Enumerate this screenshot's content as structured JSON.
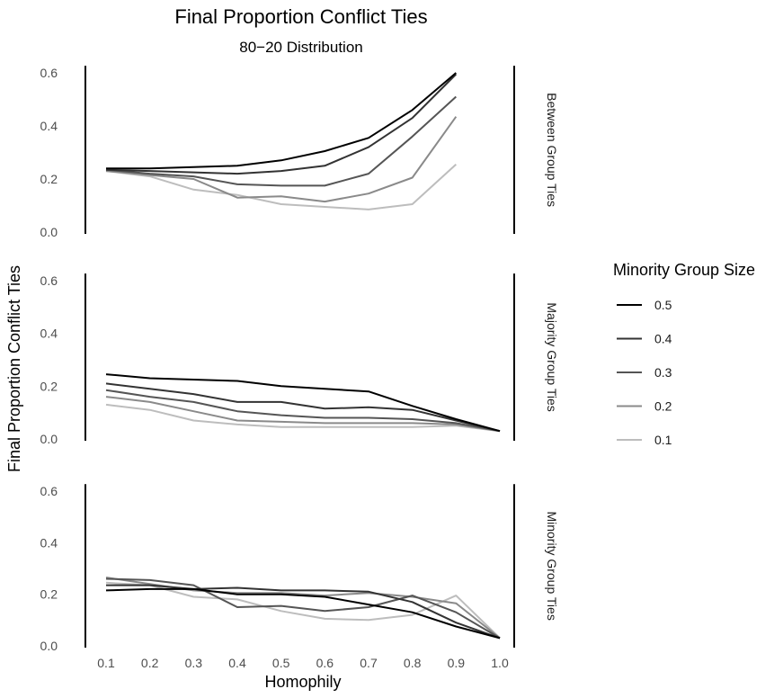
{
  "chart_data": {
    "type": "line",
    "title": "Final Proportion Conflict Ties",
    "subtitle": "80−20 Distribution",
    "xlabel": "Homophily",
    "ylabel": "Final Proportion Conflict Ties",
    "x": [
      0.1,
      0.2,
      0.3,
      0.4,
      0.5,
      0.6,
      0.7,
      0.8,
      0.9,
      1.0
    ],
    "x_tick_labels": [
      "0.1",
      "0.2",
      "0.3",
      "0.4",
      "0.5",
      "0.6",
      "0.7",
      "0.8",
      "0.9",
      "1.0"
    ],
    "ylim": [
      0,
      0.62
    ],
    "y_ticks": [
      0,
      0.2,
      0.4,
      0.6
    ],
    "y_tick_labels": [
      "0.0",
      "0.2",
      "0.4",
      "0.6"
    ],
    "legend": {
      "title": "Minority Group Size",
      "position": "right",
      "entries": [
        {
          "label": "0.5",
          "color": "#000000"
        },
        {
          "label": "0.4",
          "color": "#333333"
        },
        {
          "label": "0.3",
          "color": "#555555"
        },
        {
          "label": "0.2",
          "color": "#8a8a8a"
        },
        {
          "label": "0.1",
          "color": "#bdbdbd"
        }
      ]
    },
    "panels": [
      {
        "strip_label": "Between Group Ties",
        "series": [
          {
            "name": "0.5",
            "color": "#000000",
            "values": [
              0.24,
              0.24,
              0.245,
              0.25,
              0.27,
              0.305,
              0.355,
              0.46,
              0.6,
              null
            ]
          },
          {
            "name": "0.4",
            "color": "#333333",
            "values": [
              0.235,
              0.23,
              0.225,
              0.22,
              0.23,
              0.25,
              0.32,
              0.43,
              0.595,
              null
            ]
          },
          {
            "name": "0.3",
            "color": "#555555",
            "values": [
              0.235,
              0.22,
              0.21,
              0.18,
              0.175,
              0.175,
              0.22,
              0.36,
              0.51,
              null
            ]
          },
          {
            "name": "0.2",
            "color": "#8a8a8a",
            "values": [
              0.23,
              0.215,
              0.2,
              0.13,
              0.135,
              0.115,
              0.145,
              0.205,
              0.435,
              null
            ]
          },
          {
            "name": "0.1",
            "color": "#bdbdbd",
            "values": [
              0.23,
              0.21,
              0.16,
              0.14,
              0.105,
              0.095,
              0.085,
              0.105,
              0.255,
              null
            ]
          }
        ]
      },
      {
        "strip_label": "Majority Group Ties",
        "series": [
          {
            "name": "0.5",
            "color": "#000000",
            "values": [
              0.245,
              0.23,
              0.225,
              0.22,
              0.2,
              0.19,
              0.18,
              0.125,
              0.075,
              0.03
            ]
          },
          {
            "name": "0.4",
            "color": "#333333",
            "values": [
              0.21,
              0.19,
              0.17,
              0.14,
              0.14,
              0.115,
              0.12,
              0.11,
              0.07,
              0.03
            ]
          },
          {
            "name": "0.3",
            "color": "#555555",
            "values": [
              0.185,
              0.16,
              0.14,
              0.105,
              0.09,
              0.08,
              0.08,
              0.075,
              0.06,
              0.03
            ]
          },
          {
            "name": "0.2",
            "color": "#8a8a8a",
            "values": [
              0.16,
              0.14,
              0.105,
              0.07,
              0.065,
              0.06,
              0.06,
              0.06,
              0.055,
              0.03
            ]
          },
          {
            "name": "0.1",
            "color": "#bdbdbd",
            "values": [
              0.13,
              0.11,
              0.07,
              0.055,
              0.045,
              0.045,
              0.045,
              0.045,
              0.05,
              0.03
            ]
          }
        ]
      },
      {
        "strip_label": "Minority Group Ties",
        "series": [
          {
            "name": "0.5",
            "color": "#000000",
            "values": [
              0.215,
              0.22,
              0.22,
              0.2,
              0.2,
              0.19,
              0.16,
              0.13,
              0.075,
              0.03
            ]
          },
          {
            "name": "0.4",
            "color": "#333333",
            "values": [
              0.235,
              0.235,
              0.22,
              0.225,
              0.215,
              0.215,
              0.21,
              0.17,
              0.09,
              0.03
            ]
          },
          {
            "name": "0.3",
            "color": "#555555",
            "values": [
              0.26,
              0.255,
              0.235,
              0.15,
              0.155,
              0.135,
              0.15,
              0.195,
              0.13,
              0.03
            ]
          },
          {
            "name": "0.2",
            "color": "#8a8a8a",
            "values": [
              0.265,
              0.24,
              0.215,
              0.205,
              0.205,
              0.195,
              0.205,
              0.19,
              0.165,
              0.03
            ]
          },
          {
            "name": "0.1",
            "color": "#bdbdbd",
            "values": [
              0.245,
              0.235,
              0.19,
              0.18,
              0.135,
              0.105,
              0.1,
              0.12,
              0.195,
              0.03
            ]
          }
        ]
      }
    ]
  }
}
